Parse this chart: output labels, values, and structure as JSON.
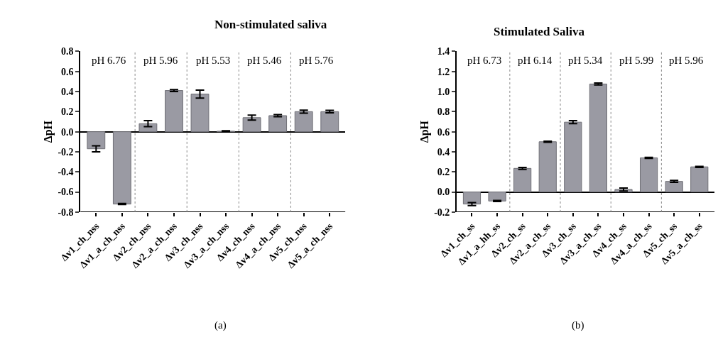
{
  "chart_data": [
    {
      "type": "bar",
      "title": "Non-stimulated saliva",
      "ylabel": "ΔpH",
      "categories": [
        "Δv1_ch_nss",
        "Δv1_a_ch_nss",
        "Δv2_ch_nss",
        "Δv2_a_ch_nss",
        "Δv3_ch_nss",
        "Δv3_a_ch_nss",
        "Δv4_ch_nss",
        "Δv4_a_ch_nss",
        "Δv5_ch_nss",
        "Δv5_a_ch_nss"
      ],
      "values": [
        -0.17,
        -0.72,
        0.08,
        0.41,
        0.375,
        0.005,
        0.14,
        0.16,
        0.2,
        0.2
      ],
      "errors": [
        0.03,
        0.005,
        0.03,
        0.01,
        0.04,
        0.005,
        0.025,
        0.01,
        0.015,
        0.012
      ],
      "color": "#9a9aa3",
      "ylim": [
        -0.8,
        0.8
      ],
      "yticks": [
        {
          "value": -0.8,
          "label": "-0.8"
        },
        {
          "value": -0.6,
          "label": "-0.6"
        },
        {
          "value": -0.4,
          "label": "-0.4"
        },
        {
          "value": -0.2,
          "label": "-0.2"
        },
        {
          "value": 0,
          "label": "0.0"
        },
        {
          "value": 0.2,
          "label": "0.2"
        },
        {
          "value": 0.4,
          "label": "0.4"
        },
        {
          "value": 0.6,
          "label": "0.6"
        },
        {
          "value": 0.8,
          "label": "0.8"
        }
      ],
      "annotations": [
        "pH 6.76",
        "pH 5.96",
        "pH 5.53",
        "pH 5.46",
        "pH 5.76",
        "(a)"
      ]
    },
    {
      "type": "bar",
      "title": "Stimulated Saliva",
      "ylabel": "ΔpH",
      "categories": [
        "Δv1_ch_ss",
        "Δv1_a_hh_ss",
        "Δv2_ch_ss",
        "Δv2_a_ch_ss",
        "Δv3_ch_ss",
        "Δv3_a_ch_ss",
        "Δv4_ch_ss",
        "Δv4_a_ch_ss",
        "Δv5_ch_ss",
        "Δv5_a_ch_ss"
      ],
      "values": [
        -0.12,
        -0.09,
        0.235,
        0.5,
        0.695,
        1.075,
        0.025,
        0.34,
        0.105,
        0.25
      ],
      "errors": [
        0.015,
        0.005,
        0.01,
        0.005,
        0.015,
        0.01,
        0.015,
        0.005,
        0.01,
        0.005
      ],
      "color": "#9a9aa3",
      "ylim": [
        -0.2,
        1.4
      ],
      "yticks": [
        {
          "value": -0.2,
          "label": "-0.2"
        },
        {
          "value": 0,
          "label": "0.0"
        },
        {
          "value": 0.2,
          "label": "0.2"
        },
        {
          "value": 0.4,
          "label": "0.4"
        },
        {
          "value": 0.6,
          "label": "0.6"
        },
        {
          "value": 0.8,
          "label": "0.8"
        },
        {
          "value": 1,
          "label": "1.0"
        },
        {
          "value": 1.2,
          "label": "1.2"
        },
        {
          "value": 1.4,
          "label": "1.4"
        }
      ],
      "annotations": [
        "pH 6.73",
        "pH 6.14",
        "pH 5.34",
        "pH 5.99",
        "pH 5.96",
        "(b)"
      ]
    }
  ]
}
